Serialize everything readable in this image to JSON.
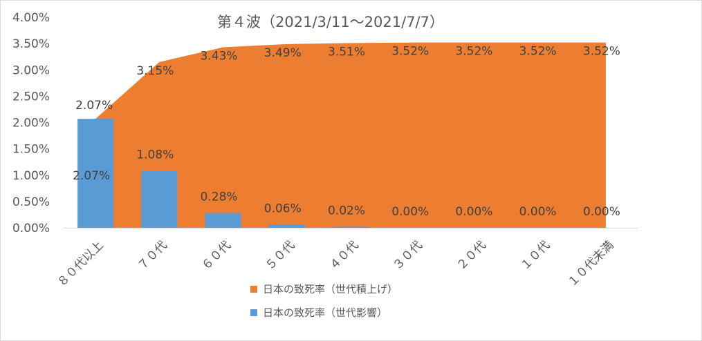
{
  "chart_data": {
    "type": "bar",
    "title": "第４波（2021/3/11～2021/7/7）",
    "categories": [
      "８０代以上",
      "７０代",
      "６０代",
      "５０代",
      "４０代",
      "３０代",
      "２０代",
      "１０代",
      "１０代未満"
    ],
    "series": [
      {
        "name": "日本の致死率（世代積上げ）",
        "chart_type": "area",
        "color": "#ED7D31",
        "values": [
          2.07,
          3.15,
          3.43,
          3.49,
          3.51,
          3.52,
          3.52,
          3.52,
          3.52
        ],
        "labels": [
          "2.07%",
          "3.15%",
          "3.43%",
          "3.49%",
          "3.51%",
          "3.52%",
          "3.52%",
          "3.52%",
          "3.52%"
        ]
      },
      {
        "name": "日本の致死率（世代影響）",
        "chart_type": "bar",
        "color": "#5B9BD5",
        "values": [
          2.07,
          1.08,
          0.28,
          0.06,
          0.02,
          0.0,
          0.0,
          0.0,
          0.0
        ],
        "labels": [
          "2.07%",
          "1.08%",
          "0.28%",
          "0.06%",
          "0.02%",
          "0.00%",
          "0.00%",
          "0.00%",
          "0.00%"
        ]
      }
    ],
    "ylim": [
      0,
      4
    ],
    "yticks": [
      "0.00%",
      "0.50%",
      "1.00%",
      "1.50%",
      "2.00%",
      "2.50%",
      "3.00%",
      "3.50%",
      "4.00%"
    ],
    "legend_position": "bottom",
    "grid": false
  }
}
